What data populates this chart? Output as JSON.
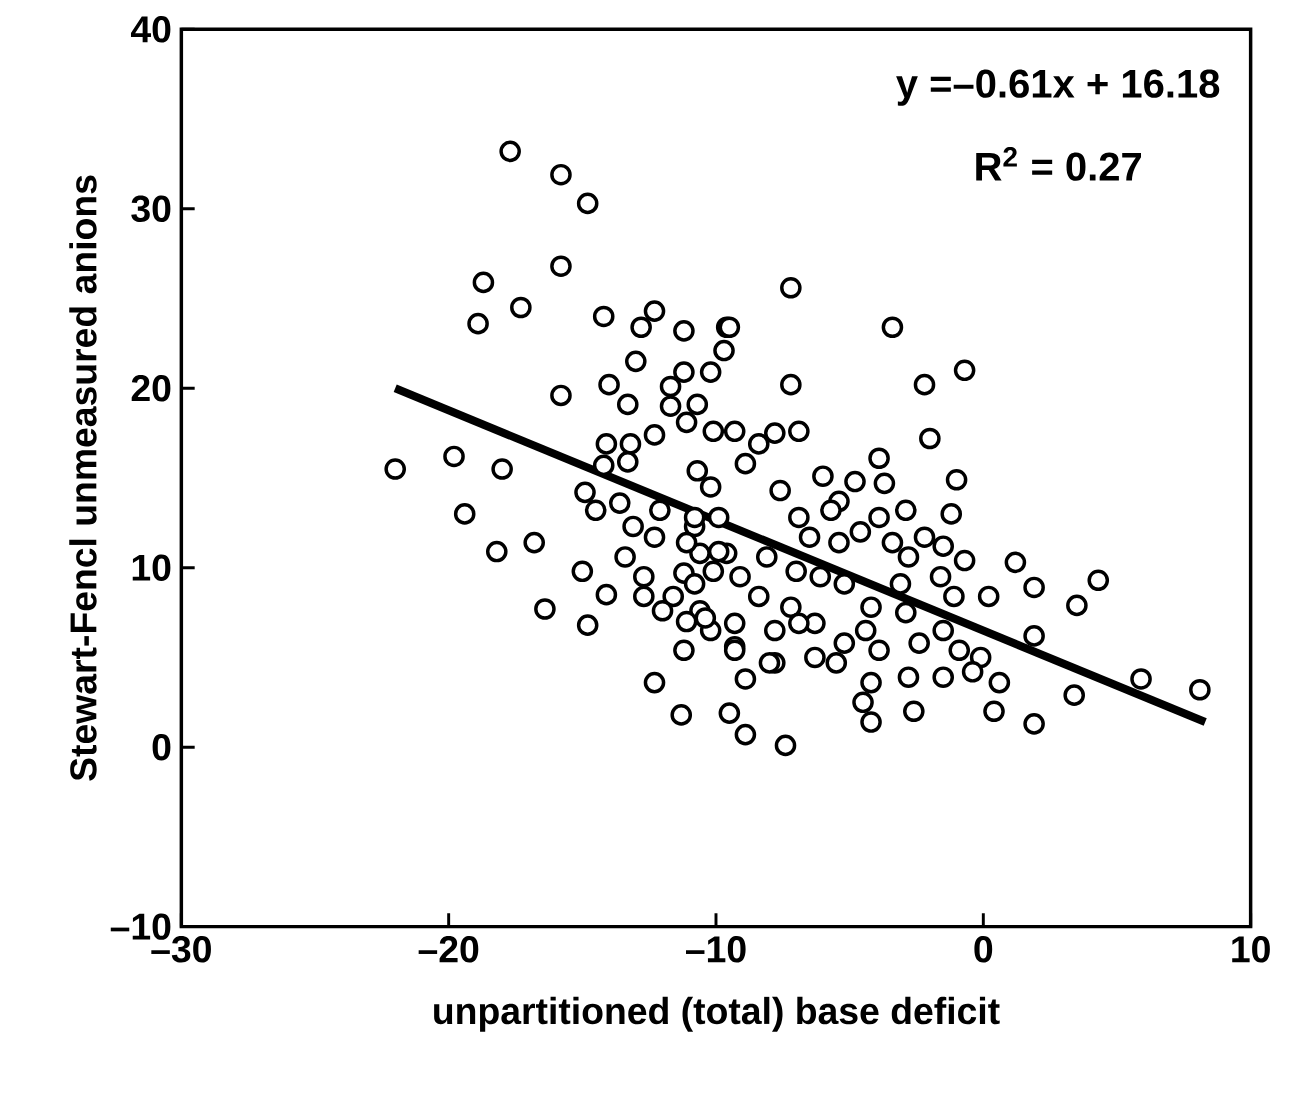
{
  "chart_data": {
    "type": "scatter",
    "xlabel": "unpartitioned (total) base deficit",
    "ylabel": "Stewart-Fencl unmeasured anions",
    "annotations": [
      "y =–0.61x + 16.18",
      "R$^{2}$ = 0.27"
    ],
    "xlim": [
      -30,
      10
    ],
    "ylim": [
      -10,
      40
    ],
    "xticks": [
      {
        "value": -30,
        "label": "–30"
      },
      {
        "value": -20,
        "label": "–20"
      },
      {
        "value": -10,
        "label": "–10"
      },
      0,
      10
    ],
    "yticks": [
      {
        "value": -10,
        "label": "–10"
      },
      0,
      10,
      20,
      30,
      40
    ],
    "series": [
      {
        "marker": "circle",
        "color": "#000000",
        "x": [
          -17.7,
          -15.8,
          -14.8,
          -15.8,
          -18.7,
          -17.3,
          -18.9,
          -14.2,
          -15.8,
          -14.0,
          -22.0,
          -19.8,
          -18.0,
          -19.4,
          -16.8,
          -18.2,
          -15.0,
          -14.1,
          -16.4,
          -14.8,
          -12.3,
          -11.3,
          -9.5,
          -12.3,
          -11.2,
          -12.8,
          -13.0,
          -9.6,
          -9.7,
          -11.2,
          -11.7,
          -10.7,
          -13.3,
          -11.7,
          -10.1,
          -11.1,
          -14.1,
          -13.2,
          -12.3,
          -13.3,
          -14.2,
          -10.7,
          -10.2,
          -14.9,
          -13.6,
          -14.5,
          -12.1,
          -10.8,
          -13.1,
          -12.3,
          -13.4,
          -10.6,
          -9.6,
          -12.7,
          -11.2,
          -10.1,
          -12.7,
          -11.6,
          -10.6,
          -12.0,
          -11.1,
          -10.2,
          -11.2,
          -9.3,
          -7.2,
          -3.4,
          -0.7,
          -2.2,
          -7.2,
          -9.5,
          -10.2,
          -2.0,
          -1.0,
          -1.2,
          4.3,
          3.5,
          8.1,
          5.9,
          1.9,
          1.2,
          1.9,
          0.2,
          -0.7,
          3.4,
          1.9,
          0.4,
          -2.6,
          -4.2,
          -7.4,
          -8.9,
          -8.9,
          -7.8,
          -6.9,
          -8.4,
          -7.8,
          -9.3,
          -3.9,
          -4.8,
          -6.0,
          -8.9,
          -3.7,
          -2.9,
          -5.4,
          -5.7,
          -7.6,
          -6.5,
          -4.6,
          -3.9,
          -3.4,
          -2.2,
          -1.5,
          -2.8,
          -1.6,
          -1.1,
          -3.1,
          -4.2,
          -5.2,
          -6.1,
          -7.0,
          -8.1,
          -9.1,
          -8.4,
          -7.2,
          -6.3,
          -7.8,
          -9.3,
          -9.3,
          -5.2,
          -4.4,
          -3.9,
          -2.9,
          -2.4,
          -1.5,
          -0.9,
          -0.1,
          0.6,
          -0.4,
          -1.5,
          -2.8,
          -4.2,
          -4.5,
          -5.5,
          -6.3,
          -10.4,
          -10.8,
          -11.1,
          -10.8,
          -5.4,
          -6.9,
          -9.9,
          -9.9,
          -6.9,
          -8.0
        ],
        "values": [
          33.2,
          31.9,
          30.3,
          26.8,
          25.9,
          24.5,
          23.6,
          24.0,
          19.6,
          20.2,
          15.5,
          16.2,
          15.5,
          13.0,
          11.4,
          10.9,
          9.8,
          8.5,
          7.7,
          6.8,
          3.6,
          1.8,
          1.9,
          24.3,
          23.2,
          23.4,
          21.5,
          23.4,
          22.1,
          20.9,
          20.1,
          19.1,
          19.1,
          19.0,
          17.6,
          18.1,
          16.9,
          16.9,
          17.4,
          15.9,
          15.7,
          15.4,
          14.5,
          14.2,
          13.6,
          13.2,
          13.2,
          12.3,
          12.3,
          11.7,
          10.6,
          10.8,
          10.8,
          9.5,
          9.7,
          9.8,
          8.4,
          8.4,
          7.6,
          7.6,
          7.0,
          6.5,
          5.4,
          5.6,
          25.6,
          23.4,
          21.0,
          20.2,
          20.2,
          23.4,
          20.9,
          17.2,
          14.9,
          13.0,
          9.3,
          7.9,
          3.2,
          3.8,
          6.2,
          10.3,
          8.9,
          8.4,
          10.4,
          2.9,
          1.3,
          2.0,
          2.0,
          1.4,
          0.1,
          0.7,
          3.8,
          4.7,
          17.6,
          16.9,
          17.5,
          17.6,
          16.1,
          14.8,
          15.1,
          15.8,
          14.7,
          13.2,
          13.7,
          13.2,
          14.3,
          11.7,
          12.0,
          12.8,
          11.4,
          11.7,
          11.2,
          10.6,
          9.5,
          8.4,
          9.1,
          7.8,
          9.1,
          9.5,
          9.8,
          10.6,
          9.5,
          8.4,
          7.8,
          6.9,
          6.5,
          6.9,
          5.4,
          5.8,
          6.5,
          5.4,
          7.5,
          5.8,
          6.5,
          5.4,
          5.0,
          3.6,
          4.2,
          3.9,
          3.9,
          3.6,
          2.5,
          4.7,
          5.0,
          7.2,
          9.1,
          11.4,
          12.8,
          11.4,
          12.8,
          12.8,
          10.9,
          6.9,
          4.7
        ]
      },
      {
        "type": "line",
        "marker": "none",
        "line_style": "solid",
        "color": "#000000",
        "x": [
          -22.0,
          8.3
        ],
        "values": [
          20.0,
          1.4
        ]
      }
    ]
  }
}
